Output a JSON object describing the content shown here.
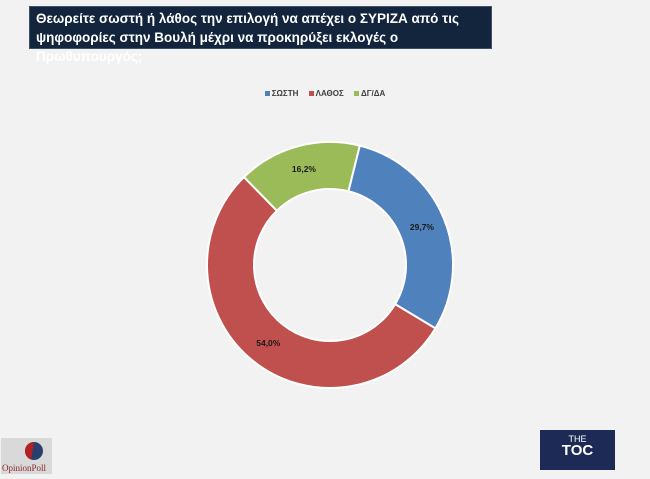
{
  "title": "Θεωρείτε σωστή ή λάθος  την επιλογή να απέχει ο ΣΥΡΙΖΑ από τις ψηφοφορίες στην Βουλή μέχρι να προκηρύξει εκλογές ο Πρωθυπουργός;",
  "chart_data": {
    "type": "pie",
    "variant": "donut",
    "title": "Θεωρείτε σωστή ή λάθος  την επιλογή να απέχει ο ΣΥΡΙΖΑ από τις ψηφοφορίες στην Βουλή μέχρι να προκηρύξει εκλογές ο Πρωθυπουργός;",
    "categories": [
      "ΣΩΣΤΗ",
      "ΛΑΘΟΣ",
      "ΔΓ/ΔΑ"
    ],
    "values": [
      29.7,
      54.0,
      16.2
    ],
    "labels": [
      "29,7%",
      "54,0%",
      "16,2%"
    ],
    "colors": [
      "#4f81bd",
      "#c0504d",
      "#9bbb59"
    ],
    "legend": "top"
  },
  "logos": {
    "left": "OpinionPoll",
    "right": "THE TOC"
  }
}
